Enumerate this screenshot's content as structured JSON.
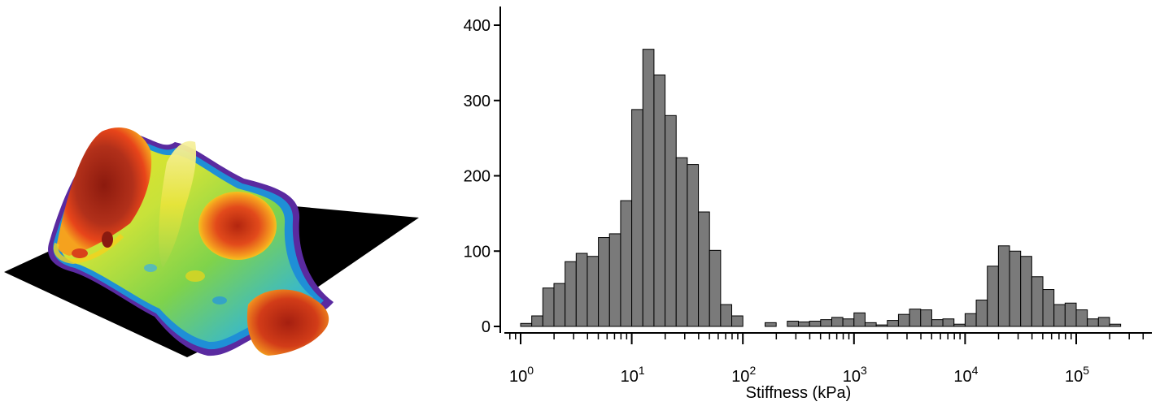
{
  "surface": {
    "description_icon": "afm-3d-stiffness-surface",
    "colors": {
      "background": "#000000",
      "high": "#a01e10",
      "mid_high": "#e8451a",
      "mid": "#f5e61e",
      "low_mid": "#7bd04a",
      "low": "#1fa6d8",
      "edge": "#6b2aa8"
    }
  },
  "chart_data": {
    "type": "bar",
    "title": "",
    "xlabel": "Stiffness (kPa)",
    "ylabel": "",
    "x_scale": "log",
    "xlim": [
      0.7,
      500000
    ],
    "ylim": [
      0,
      400
    ],
    "y_ticks": [
      0,
      100,
      200,
      300,
      400
    ],
    "x_major_ticks": [
      1,
      10,
      100,
      1000,
      10000,
      100000
    ],
    "x_tick_labels": [
      {
        "base": "10",
        "exp": "0"
      },
      {
        "base": "10",
        "exp": "1"
      },
      {
        "base": "10",
        "exp": "2"
      },
      {
        "base": "10",
        "exp": "3"
      },
      {
        "base": "10",
        "exp": "4"
      },
      {
        "base": "10",
        "exp": "5"
      }
    ],
    "bin_log_start": 0.0,
    "bin_log_width": 0.1,
    "values": [
      4,
      14,
      51,
      57,
      86,
      97,
      93,
      118,
      123,
      167,
      288,
      368,
      334,
      280,
      224,
      215,
      152,
      101,
      29,
      14,
      0,
      0,
      5,
      0,
      7,
      6,
      7,
      9,
      12,
      10,
      18,
      5,
      2,
      8,
      16,
      23,
      22,
      9,
      10,
      3,
      17,
      35,
      80,
      107,
      100,
      93,
      66,
      49,
      29,
      31,
      22,
      10,
      12,
      3,
      0
    ],
    "bar_color": "#7a7a7a",
    "grid": false,
    "legend": "none"
  }
}
